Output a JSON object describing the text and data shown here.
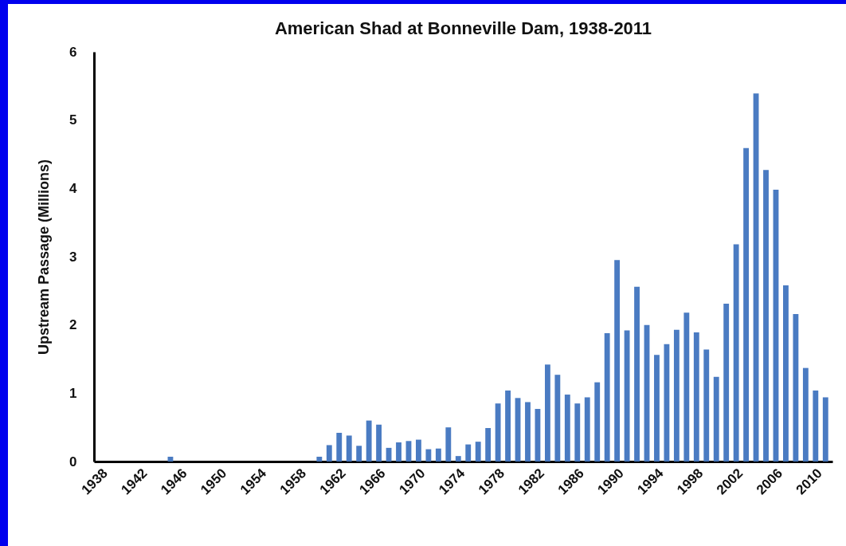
{
  "chart_data": {
    "type": "bar",
    "title": "American Shad at Bonneville Dam, 1938-2011",
    "ylabel": "Upstream Passage (Millions)",
    "categories": [
      "1938",
      null,
      null,
      null,
      "1942",
      null,
      null,
      null,
      "1946",
      null,
      null,
      null,
      "1950",
      null,
      null,
      null,
      "1954",
      null,
      null,
      null,
      "1958",
      null,
      null,
      null,
      "1962",
      null,
      null,
      null,
      "1966",
      null,
      null,
      null,
      "1970",
      null,
      null,
      null,
      "1974",
      null,
      null,
      null,
      "1978",
      null,
      null,
      null,
      "1982",
      null,
      null,
      null,
      "1986",
      null,
      null,
      null,
      "1990",
      null,
      null,
      null,
      "1994",
      null,
      null,
      null,
      "1998",
      null,
      null,
      null,
      "2002",
      null,
      null,
      null,
      "2006",
      null,
      null,
      null,
      "2010",
      null
    ],
    "values": [
      0,
      0,
      0,
      0,
      0,
      0,
      0,
      0.07,
      0,
      0,
      0,
      0,
      0,
      0,
      0,
      0,
      0,
      0,
      0,
      0,
      0,
      0,
      0.07,
      0.24,
      0.42,
      0.38,
      0.23,
      0.6,
      0.54,
      0.2,
      0.28,
      0.3,
      0.32,
      0.18,
      0.19,
      0.5,
      0.08,
      0.25,
      0.29,
      0.49,
      0.85,
      1.04,
      0.93,
      0.87,
      0.77,
      1.42,
      1.27,
      0.98,
      0.85,
      0.94,
      1.16,
      1.88,
      2.95,
      1.92,
      2.56,
      2.0,
      1.56,
      1.72,
      1.93,
      2.18,
      1.89,
      1.64,
      1.24,
      2.31,
      3.18,
      4.59,
      5.39,
      4.27,
      3.98,
      2.58,
      2.16,
      1.37,
      1.04,
      0.94
    ],
    "color": "#4a7bc2",
    "ylim": [
      0,
      6
    ],
    "yticks": [
      0,
      1,
      2,
      3,
      4,
      5,
      6
    ],
    "grid": false
  }
}
